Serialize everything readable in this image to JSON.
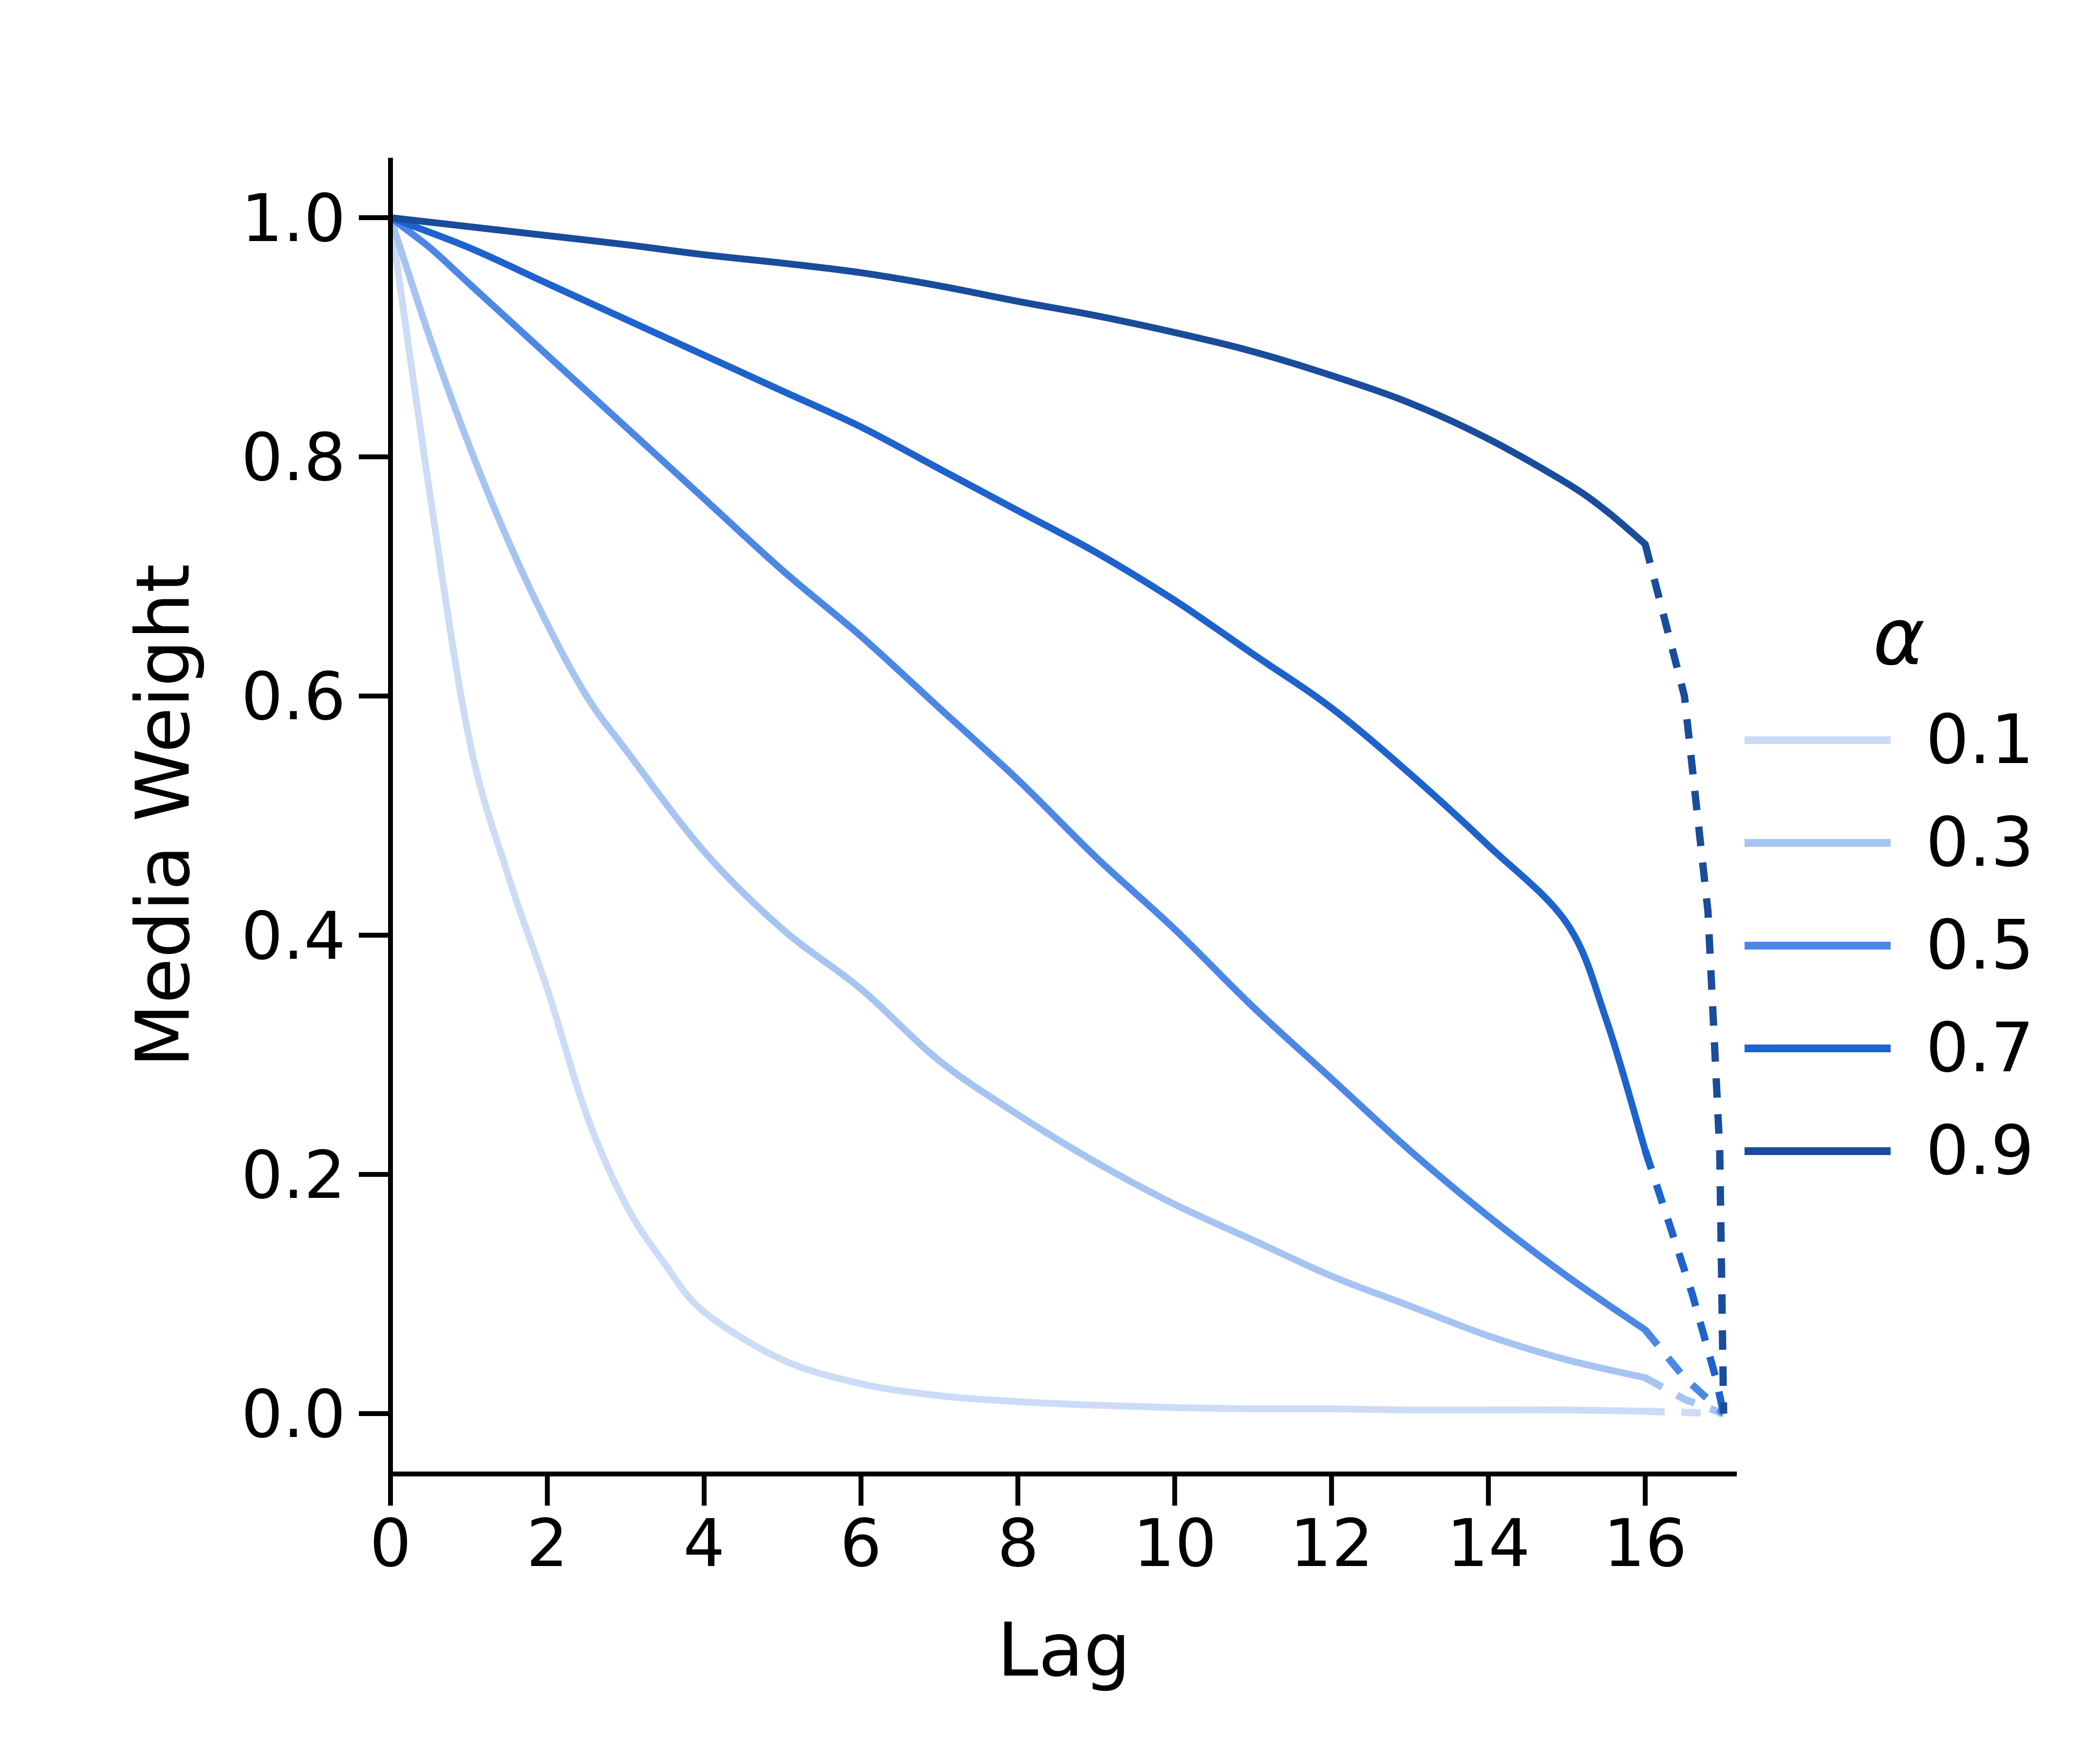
{
  "chart_data": {
    "type": "line",
    "title": "",
    "xlabel": "Lag",
    "ylabel": "Media Weight",
    "xlim": [
      0,
      17.2
    ],
    "ylim": [
      -0.05,
      1.05
    ],
    "grid": false,
    "x_tick_labels": [
      "0",
      "2",
      "4",
      "6",
      "8",
      "10",
      "12",
      "14",
      "16"
    ],
    "x_tick_values": [
      0,
      2,
      4,
      6,
      8,
      10,
      12,
      14,
      16
    ],
    "y_tick_labels": [
      "0.0",
      "0.2",
      "0.4",
      "0.6",
      "0.8",
      "1.0"
    ],
    "y_tick_values": [
      0.0,
      0.2,
      0.4,
      0.6,
      0.8,
      1.0
    ],
    "legend": {
      "title": "α",
      "position": "center right",
      "entries": [
        {
          "label": "0.1"
        },
        {
          "label": "0.3"
        },
        {
          "label": "0.5"
        },
        {
          "label": "0.7"
        },
        {
          "label": "0.9"
        }
      ]
    },
    "series": [
      {
        "name": "alpha-0.1",
        "alpha": 0.1,
        "color": "#ccdcf7",
        "solid": [
          [
            0,
            1
          ],
          [
            0.5,
            0.77
          ],
          [
            1,
            0.565
          ],
          [
            1.5,
            0.45
          ],
          [
            2,
            0.355
          ],
          [
            2.5,
            0.25
          ],
          [
            3,
            0.175
          ],
          [
            3.5,
            0.125
          ],
          [
            4,
            0.085
          ],
          [
            5,
            0.045
          ],
          [
            6,
            0.025
          ],
          [
            7,
            0.015
          ],
          [
            8,
            0.01
          ],
          [
            9,
            0.007
          ],
          [
            10,
            0.005
          ],
          [
            11,
            0.004
          ],
          [
            12,
            0.004
          ],
          [
            13,
            0.003
          ],
          [
            14,
            0.003
          ],
          [
            15,
            0.003
          ],
          [
            16,
            0.002
          ]
        ],
        "dashed": [
          [
            16,
            0.002
          ],
          [
            16.5,
            0.001
          ],
          [
            17,
            0
          ]
        ]
      },
      {
        "name": "alpha-0.3",
        "alpha": 0.3,
        "color": "#a6c4f2",
        "solid": [
          [
            0,
            1
          ],
          [
            0.5,
            0.9
          ],
          [
            1,
            0.81
          ],
          [
            1.5,
            0.73
          ],
          [
            2,
            0.66
          ],
          [
            2.5,
            0.6
          ],
          [
            3,
            0.555
          ],
          [
            4,
            0.47
          ],
          [
            5,
            0.405
          ],
          [
            6,
            0.355
          ],
          [
            7,
            0.295
          ],
          [
            8,
            0.25
          ],
          [
            9,
            0.21
          ],
          [
            10,
            0.175
          ],
          [
            11,
            0.145
          ],
          [
            12,
            0.115
          ],
          [
            13,
            0.09
          ],
          [
            14,
            0.065
          ],
          [
            15,
            0.045
          ],
          [
            16,
            0.03
          ]
        ],
        "dashed": [
          [
            16,
            0.03
          ],
          [
            16.5,
            0.012
          ],
          [
            17,
            0
          ]
        ]
      },
      {
        "name": "alpha-0.5",
        "alpha": 0.5,
        "color": "#4c87e6",
        "solid": [
          [
            0,
            1
          ],
          [
            0.5,
            0.975
          ],
          [
            1,
            0.945
          ],
          [
            2,
            0.885
          ],
          [
            3,
            0.825
          ],
          [
            4,
            0.765
          ],
          [
            5,
            0.705
          ],
          [
            6,
            0.65
          ],
          [
            7,
            0.59
          ],
          [
            8,
            0.53
          ],
          [
            9,
            0.465
          ],
          [
            10,
            0.405
          ],
          [
            11,
            0.34
          ],
          [
            12,
            0.28
          ],
          [
            13,
            0.22
          ],
          [
            14,
            0.165
          ],
          [
            15,
            0.115
          ],
          [
            16,
            0.07
          ]
        ],
        "dashed": [
          [
            16,
            0.07
          ],
          [
            16.5,
            0.03
          ],
          [
            17,
            0
          ]
        ]
      },
      {
        "name": "alpha-0.7",
        "alpha": 0.7,
        "color": "#1e63cd",
        "solid": [
          [
            0,
            1
          ],
          [
            1,
            0.975
          ],
          [
            2,
            0.945
          ],
          [
            3,
            0.915
          ],
          [
            4,
            0.885
          ],
          [
            5,
            0.855
          ],
          [
            6,
            0.825
          ],
          [
            7,
            0.79
          ],
          [
            8,
            0.755
          ],
          [
            9,
            0.72
          ],
          [
            10,
            0.68
          ],
          [
            11,
            0.635
          ],
          [
            12,
            0.59
          ],
          [
            13,
            0.535
          ],
          [
            14,
            0.475
          ],
          [
            15,
            0.41
          ],
          [
            15.5,
            0.33
          ],
          [
            16,
            0.22
          ]
        ],
        "dashed": [
          [
            16,
            0.22
          ],
          [
            16.6,
            0.1
          ],
          [
            16.9,
            0.03
          ],
          [
            17,
            0
          ]
        ]
      },
      {
        "name": "alpha-0.9",
        "alpha": 0.9,
        "color": "#1a4c9c",
        "solid": [
          [
            0,
            1
          ],
          [
            1,
            0.9925
          ],
          [
            2,
            0.985
          ],
          [
            3,
            0.9775
          ],
          [
            4,
            0.969
          ],
          [
            5,
            0.962
          ],
          [
            6,
            0.954
          ],
          [
            7,
            0.943
          ],
          [
            8,
            0.93
          ],
          [
            9,
            0.918
          ],
          [
            10,
            0.904
          ],
          [
            11,
            0.888
          ],
          [
            12,
            0.868
          ],
          [
            13,
            0.845
          ],
          [
            14,
            0.815
          ],
          [
            15,
            0.778
          ],
          [
            15.5,
            0.755
          ],
          [
            16,
            0.727
          ]
        ],
        "dashed": [
          [
            16,
            0.727
          ],
          [
            16.5,
            0.6
          ],
          [
            16.8,
            0.42
          ],
          [
            16.95,
            0.22
          ],
          [
            17,
            0
          ]
        ]
      }
    ]
  }
}
